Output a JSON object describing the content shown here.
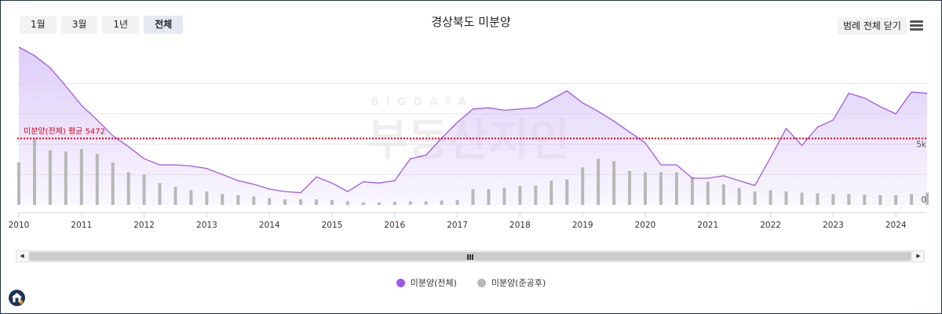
{
  "range_buttons": [
    {
      "label": "1월",
      "active": false
    },
    {
      "label": "3월",
      "active": false
    },
    {
      "label": "1년",
      "active": false
    },
    {
      "label": "전체",
      "active": true
    }
  ],
  "legend_toggle_label": "범례 전체 닫기",
  "menu_icon": "hamburger-menu-icon",
  "watermark": {
    "small": "BIGDATA",
    "big": "부동산지인"
  },
  "colors": {
    "total_line": "#9b59f0",
    "total_fill": "#d9c8f7",
    "completed_bar": "#b8b8b8",
    "average_line": "#e0001a"
  },
  "chart_data": {
    "type": "area",
    "title": "경상북도 미분양",
    "x_tick_labels": [
      "2010",
      "2011",
      "2012",
      "2013",
      "2014",
      "2015",
      "2016",
      "2017",
      "2018",
      "2019",
      "2020",
      "2021",
      "2022",
      "2023",
      "2024"
    ],
    "y_tick_labels": [
      {
        "value": 0,
        "label": "0"
      },
      {
        "value": 5000,
        "label": "5k"
      }
    ],
    "ylim": [
      0,
      13000
    ],
    "grid": true,
    "legend_position": "bottom-center",
    "average_line": {
      "label": "미분양(전체) 평균 5472",
      "value": 5472
    },
    "series": [
      {
        "name": "미분양(전체)",
        "type": "area",
        "x": [
          "2010-01",
          "2010-04",
          "2010-07",
          "2010-10",
          "2011-01",
          "2011-04",
          "2011-07",
          "2011-10",
          "2012-01",
          "2012-04",
          "2012-07",
          "2012-10",
          "2013-01",
          "2013-04",
          "2013-07",
          "2013-10",
          "2014-01",
          "2014-04",
          "2014-07",
          "2014-10",
          "2015-01",
          "2015-04",
          "2015-07",
          "2015-10",
          "2016-01",
          "2016-04",
          "2016-07",
          "2016-10",
          "2017-01",
          "2017-04",
          "2017-07",
          "2017-10",
          "2018-01",
          "2018-04",
          "2018-07",
          "2018-10",
          "2019-01",
          "2019-04",
          "2019-07",
          "2019-10",
          "2020-01",
          "2020-04",
          "2020-07",
          "2020-10",
          "2021-01",
          "2021-04",
          "2021-07",
          "2021-10",
          "2022-01",
          "2022-04",
          "2022-07",
          "2022-10",
          "2023-01",
          "2023-04",
          "2023-07",
          "2023-10",
          "2024-01",
          "2024-04",
          "2024-07"
        ],
        "values": [
          13000,
          12300,
          11300,
          9800,
          8200,
          7000,
          5700,
          4800,
          3800,
          3300,
          3300,
          3200,
          3000,
          2500,
          2000,
          1700,
          1300,
          1100,
          1000,
          2300,
          1800,
          1100,
          1900,
          1800,
          2000,
          3800,
          4100,
          5500,
          6800,
          7900,
          8000,
          7800,
          7900,
          8000,
          8700,
          9400,
          8400,
          7700,
          6900,
          6000,
          5100,
          3300,
          3300,
          2200,
          2200,
          2400,
          2000,
          1600,
          3900,
          6300,
          4900,
          6400,
          7000,
          9200,
          8800,
          8100,
          7500,
          9300,
          9200
        ]
      },
      {
        "name": "미분양(준공후)",
        "type": "bar",
        "x": [
          "2010-01",
          "2010-04",
          "2010-07",
          "2010-10",
          "2011-01",
          "2011-04",
          "2011-07",
          "2011-10",
          "2012-01",
          "2012-04",
          "2012-07",
          "2012-10",
          "2013-01",
          "2013-04",
          "2013-07",
          "2013-10",
          "2014-01",
          "2014-04",
          "2014-07",
          "2014-10",
          "2015-01",
          "2015-04",
          "2015-07",
          "2015-10",
          "2016-01",
          "2016-04",
          "2016-07",
          "2016-10",
          "2017-01",
          "2017-04",
          "2017-07",
          "2017-10",
          "2018-01",
          "2018-04",
          "2018-07",
          "2018-10",
          "2019-01",
          "2019-04",
          "2019-07",
          "2019-10",
          "2020-01",
          "2020-04",
          "2020-07",
          "2020-10",
          "2021-01",
          "2021-04",
          "2021-07",
          "2021-10",
          "2022-01",
          "2022-04",
          "2022-07",
          "2022-10",
          "2023-01",
          "2023-04",
          "2023-07",
          "2023-10",
          "2024-01",
          "2024-04",
          "2024-07"
        ],
        "values": [
          3500,
          5500,
          4500,
          4400,
          4600,
          4200,
          3500,
          2700,
          2500,
          1800,
          1500,
          1200,
          1100,
          900,
          800,
          700,
          550,
          450,
          450,
          450,
          400,
          300,
          200,
          200,
          250,
          300,
          300,
          350,
          400,
          1300,
          1300,
          1400,
          1550,
          1600,
          2000,
          2100,
          3100,
          3800,
          3600,
          2800,
          2700,
          2700,
          2700,
          2300,
          1900,
          1700,
          1400,
          1100,
          1200,
          1100,
          1000,
          950,
          900,
          900,
          850,
          800,
          800,
          900,
          1000
        ]
      }
    ]
  }
}
